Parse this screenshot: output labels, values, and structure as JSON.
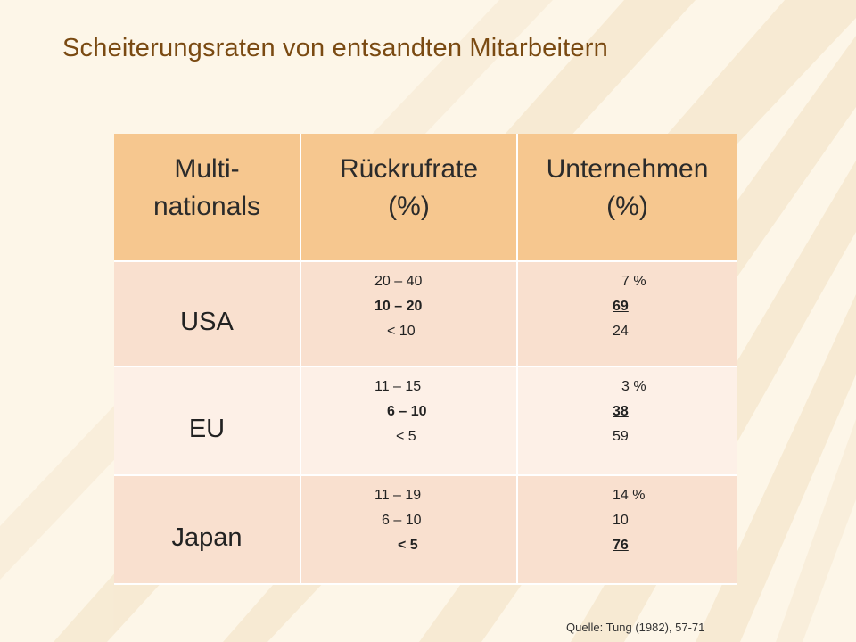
{
  "slide": {
    "title": "Scheiterungsraten von entsandten Mitarbeitern",
    "source": "Quelle: Tung (1982), 57-71"
  },
  "table": {
    "headers": [
      "Multi-\nnationals",
      "Rückrufrate\n(%)",
      "Unternehmen\n(%)"
    ],
    "rows": [
      {
        "country": "USA",
        "rates": [
          "20 – 40",
          "10 – 20",
          "< 10"
        ],
        "percents": [
          "7 %",
          "69",
          "24"
        ]
      },
      {
        "country": "EU",
        "rates": [
          "11 – 15",
          "6 – 10",
          "< 5"
        ],
        "percents": [
          "3 %",
          "38",
          "59"
        ]
      },
      {
        "country": "Japan",
        "rates": [
          "11 – 19",
          "6 – 10",
          "< 5"
        ],
        "percents": [
          "14 %",
          "10",
          "76"
        ]
      }
    ]
  },
  "colors": {
    "title": "#7a4a12",
    "header_fill": "#f6c78f",
    "row_fill_dark": "#f9e0cf",
    "row_fill_light": "#fdf0e7",
    "background": "#fdf6e8"
  }
}
